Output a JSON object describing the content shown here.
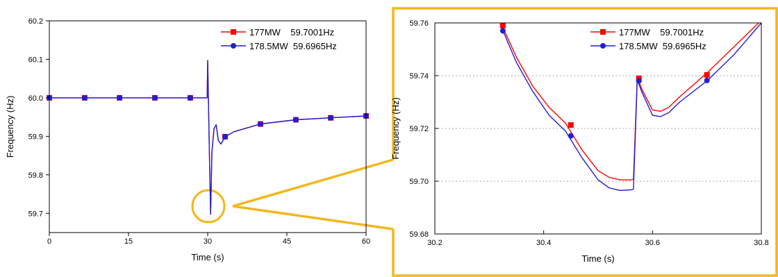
{
  "colors": {
    "red": "#ff0000",
    "blue": "#1f1fd6",
    "highlight": "#f2b71a",
    "grid": "#a8a8a8"
  },
  "chart_data": [
    {
      "type": "line",
      "title": "",
      "xlabel": "Time (s)",
      "ylabel": "Frequency (Hz)",
      "xlim": [
        0,
        60
      ],
      "ylim": [
        59.65,
        60.2
      ],
      "xticks": [
        0,
        15,
        30,
        45,
        60
      ],
      "xtick_labels": [
        "0",
        "15",
        "30",
        "45",
        "60"
      ],
      "yticks": [
        59.7,
        59.8,
        59.9,
        60.0,
        60.1,
        60.2
      ],
      "ytick_labels": [
        "59.7",
        "59.8",
        "59.9",
        "60.0",
        "60.1",
        "60.2"
      ],
      "grid": false,
      "legend_position": "top-right",
      "series": [
        {
          "name": "177MW    59.7001Hz",
          "color": "#ff0000",
          "marker": "square",
          "x": [
            0,
            6.7,
            13.3,
            20,
            26.7,
            29.9,
            30.0,
            30.3,
            30.55,
            30.8,
            31.2,
            31.6,
            32.0,
            32.5,
            33.3,
            35,
            40,
            46.7,
            53.3,
            60
          ],
          "y": [
            60.0,
            60.0,
            60.0,
            60.0,
            60.0,
            60.0,
            60.097,
            59.87,
            59.7,
            59.86,
            59.92,
            59.93,
            59.89,
            59.88,
            59.899,
            59.912,
            59.932,
            59.943,
            59.948,
            59.953
          ],
          "marker_x": [
            0,
            6.7,
            13.3,
            20,
            26.7,
            33.3,
            40,
            46.7,
            53.3,
            60
          ],
          "marker_y": [
            60.0,
            60.0,
            60.0,
            60.0,
            60.0,
            59.899,
            59.932,
            59.943,
            59.948,
            59.953
          ]
        },
        {
          "name": "178.5MW  59.6965Hz",
          "color": "#1f1fd6",
          "marker": "circle",
          "x": [
            0,
            6.7,
            13.3,
            20,
            26.7,
            29.9,
            30.0,
            30.3,
            30.55,
            30.8,
            31.2,
            31.6,
            32.0,
            32.5,
            33.3,
            35,
            40,
            46.7,
            53.3,
            60
          ],
          "y": [
            60.0,
            60.0,
            60.0,
            60.0,
            60.0,
            60.0,
            60.097,
            59.87,
            59.697,
            59.86,
            59.92,
            59.93,
            59.89,
            59.88,
            59.899,
            59.912,
            59.932,
            59.943,
            59.948,
            59.953
          ],
          "marker_x": [
            0,
            6.7,
            13.3,
            20,
            26.7,
            33.3,
            40,
            46.7,
            53.3,
            60
          ],
          "marker_y": [
            60.0,
            60.0,
            60.0,
            60.0,
            60.0,
            59.899,
            59.932,
            59.943,
            59.948,
            59.953
          ]
        }
      ],
      "annotation": {
        "type": "circle-highlight",
        "center": [
          30.5,
          59.7
        ]
      }
    },
    {
      "type": "line",
      "title": "",
      "xlabel": "Time (s)",
      "ylabel": "Frequency (Hz)",
      "xlim": [
        30.2,
        30.8
      ],
      "ylim": [
        59.68,
        59.76
      ],
      "xticks": [
        30.2,
        30.4,
        30.6,
        30.8
      ],
      "xtick_labels": [
        "30.2",
        "30.4",
        "30.6",
        "30.8"
      ],
      "yticks": [
        59.68,
        59.7,
        59.72,
        59.74,
        59.76
      ],
      "ytick_labels": [
        "59.68",
        "59.70",
        "59.72",
        "59.74",
        "59.76"
      ],
      "grid": true,
      "legend_position": "top-right",
      "series": [
        {
          "name": "177MW    59.7001Hz",
          "color": "#ff0000",
          "marker": "square",
          "x": [
            30.32,
            30.35,
            30.38,
            30.41,
            30.44,
            30.47,
            30.5,
            30.52,
            30.54,
            30.56,
            30.565,
            30.572,
            30.58,
            30.6,
            30.615,
            30.63,
            30.65,
            30.7,
            30.75,
            30.8
          ],
          "y": [
            59.7605,
            59.747,
            59.736,
            59.728,
            59.722,
            59.712,
            59.704,
            59.7015,
            59.7005,
            59.7005,
            59.7008,
            59.7395,
            59.735,
            59.727,
            59.7265,
            59.728,
            59.732,
            59.741,
            59.751,
            59.761
          ],
          "marker_x": [
            30.325,
            30.45,
            30.575,
            30.7
          ],
          "marker_y": [
            59.759,
            59.7213,
            59.739,
            59.7403
          ]
        },
        {
          "name": "178.5MW  59.6965Hz",
          "color": "#1f1fd6",
          "marker": "circle",
          "x": [
            30.32,
            30.35,
            30.38,
            30.41,
            30.44,
            30.47,
            30.5,
            30.52,
            30.54,
            30.56,
            30.565,
            30.572,
            30.58,
            30.6,
            30.615,
            30.63,
            30.65,
            30.7,
            30.75,
            30.8
          ],
          "y": [
            59.7595,
            59.745,
            59.734,
            59.725,
            59.719,
            59.709,
            59.7005,
            59.6975,
            59.6965,
            59.6967,
            59.697,
            59.7385,
            59.734,
            59.725,
            59.7245,
            59.726,
            59.73,
            59.738,
            59.748,
            59.76
          ],
          "marker_x": [
            30.325,
            30.45,
            30.575,
            30.7
          ],
          "marker_y": [
            59.757,
            59.7172,
            59.738,
            59.7382
          ]
        }
      ]
    }
  ]
}
